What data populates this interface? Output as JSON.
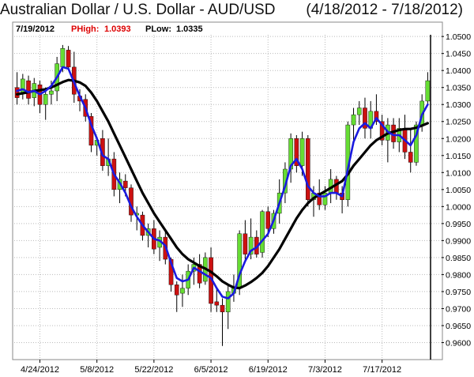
{
  "title": "Australian Dollar / U.S. Dollar -  AUD/USD",
  "date_range": "(4/18/2012 - 7/18/2012)",
  "info_bar": {
    "date": "7/19/2012",
    "high_label": "PHigh:",
    "high_value": "1.0393",
    "low_label": "PLow:",
    "low_value": "1.0335"
  },
  "colors": {
    "up": "#66dd33",
    "down": "#cc1111",
    "fast_ma": "#1a1adf",
    "slow_ma": "#000000",
    "grid": "#bbbbbb",
    "high_label": "#dd0000"
  },
  "chart_data": {
    "type": "candlestick",
    "ylim": [
      0.955,
      1.0505
    ],
    "y_ticks": [
      "1.0500",
      "1.0450",
      "1.0400",
      "1.0350",
      "1.0300",
      "1.0250",
      "1.0200",
      "1.0150",
      "1.0100",
      "1.0050",
      "1.0000",
      "0.9950",
      "0.9900",
      "0.9850",
      "0.9800",
      "0.9750",
      "0.9700",
      "0.9650",
      "0.9600"
    ],
    "x_tick_labels": [
      "4/24/2012",
      "5/8/2012",
      "5/22/2012",
      "6/5/2012",
      "6/19/2012",
      "7/3/2012",
      "7/17/2012"
    ],
    "x_tick_index": [
      4,
      14,
      24,
      34,
      44,
      54,
      64
    ],
    "grid": true,
    "candles": [
      {
        "o": 1.035,
        "h": 1.0395,
        "l": 1.03,
        "c": 1.032
      },
      {
        "o": 1.0335,
        "h": 1.039,
        "l": 1.0315,
        "c": 1.0375
      },
      {
        "o": 1.037,
        "h": 1.0385,
        "l": 1.03,
        "c": 1.0318
      },
      {
        "o": 1.032,
        "h": 1.0378,
        "l": 1.0295,
        "c": 1.0362
      },
      {
        "o": 1.0358,
        "h": 1.037,
        "l": 1.0275,
        "c": 1.03
      },
      {
        "o": 1.03,
        "h": 1.035,
        "l": 1.0255,
        "c": 1.033
      },
      {
        "o": 1.033,
        "h": 1.037,
        "l": 1.03,
        "c": 1.034
      },
      {
        "o": 1.034,
        "h": 1.044,
        "l": 1.031,
        "c": 1.042
      },
      {
        "o": 1.041,
        "h": 1.0475,
        "l": 1.0395,
        "c": 1.0465
      },
      {
        "o": 1.046,
        "h": 1.0472,
        "l": 1.04,
        "c": 1.041
      },
      {
        "o": 1.041,
        "h": 1.0455,
        "l": 1.0305,
        "c": 1.033
      },
      {
        "o": 1.0325,
        "h": 1.0345,
        "l": 1.028,
        "c": 1.031
      },
      {
        "o": 1.0315,
        "h": 1.033,
        "l": 1.025,
        "c": 1.0265
      },
      {
        "o": 1.0265,
        "h": 1.0275,
        "l": 1.016,
        "c": 1.018
      },
      {
        "o": 1.018,
        "h": 1.0205,
        "l": 1.015,
        "c": 1.0195
      },
      {
        "o": 1.02,
        "h": 1.0225,
        "l": 1.0105,
        "c": 1.012
      },
      {
        "o": 1.012,
        "h": 1.02,
        "l": 1.009,
        "c": 1.014
      },
      {
        "o": 1.014,
        "h": 1.016,
        "l": 1.003,
        "c": 1.005
      },
      {
        "o": 1.005,
        "h": 1.01,
        "l": 1.001,
        "c": 1.008
      },
      {
        "o": 1.0075,
        "h": 1.0095,
        "l": 1.003,
        "c": 1.0055
      },
      {
        "o": 1.0055,
        "h": 1.0065,
        "l": 0.9955,
        "c": 0.9975
      },
      {
        "o": 0.9975,
        "h": 1.0,
        "l": 0.993,
        "c": 0.998
      },
      {
        "o": 0.9975,
        "h": 0.9985,
        "l": 0.99,
        "c": 0.9915
      },
      {
        "o": 0.9915,
        "h": 0.995,
        "l": 0.988,
        "c": 0.9935
      },
      {
        "o": 0.9935,
        "h": 0.996,
        "l": 0.986,
        "c": 0.9875
      },
      {
        "o": 0.988,
        "h": 0.993,
        "l": 0.984,
        "c": 0.991
      },
      {
        "o": 0.991,
        "h": 0.9925,
        "l": 0.983,
        "c": 0.9845
      },
      {
        "o": 0.9845,
        "h": 0.985,
        "l": 0.975,
        "c": 0.977
      },
      {
        "o": 0.977,
        "h": 0.978,
        "l": 0.969,
        "c": 0.974
      },
      {
        "o": 0.9745,
        "h": 0.98,
        "l": 0.9705,
        "c": 0.976
      },
      {
        "o": 0.976,
        "h": 0.983,
        "l": 0.974,
        "c": 0.981
      },
      {
        "o": 0.981,
        "h": 0.985,
        "l": 0.977,
        "c": 0.983
      },
      {
        "o": 0.983,
        "h": 0.986,
        "l": 0.976,
        "c": 0.9775
      },
      {
        "o": 0.978,
        "h": 0.9865,
        "l": 0.977,
        "c": 0.985
      },
      {
        "o": 0.985,
        "h": 0.988,
        "l": 0.969,
        "c": 0.9715
      },
      {
        "o": 0.972,
        "h": 0.976,
        "l": 0.969,
        "c": 0.971
      },
      {
        "o": 0.971,
        "h": 0.973,
        "l": 0.959,
        "c": 0.969
      },
      {
        "o": 0.969,
        "h": 0.977,
        "l": 0.964,
        "c": 0.975
      },
      {
        "o": 0.9745,
        "h": 0.98,
        "l": 0.972,
        "c": 0.976
      },
      {
        "o": 0.976,
        "h": 0.993,
        "l": 0.974,
        "c": 0.992
      },
      {
        "o": 0.992,
        "h": 0.996,
        "l": 0.984,
        "c": 0.986
      },
      {
        "o": 0.986,
        "h": 0.9965,
        "l": 0.9845,
        "c": 0.991
      },
      {
        "o": 0.991,
        "h": 0.993,
        "l": 0.985,
        "c": 0.986
      },
      {
        "o": 0.9865,
        "h": 0.999,
        "l": 0.985,
        "c": 0.9985
      },
      {
        "o": 0.9985,
        "h": 1.0,
        "l": 0.991,
        "c": 0.9935
      },
      {
        "o": 0.9935,
        "h": 0.999,
        "l": 0.992,
        "c": 0.998
      },
      {
        "o": 0.998,
        "h": 1.008,
        "l": 0.995,
        "c": 1.004
      },
      {
        "o": 1.004,
        "h": 1.013,
        "l": 1.001,
        "c": 1.011
      },
      {
        "o": 1.011,
        "h": 1.0215,
        "l": 1.007,
        "c": 1.02
      },
      {
        "o": 1.02,
        "h": 1.021,
        "l": 1.01,
        "c": 1.012
      },
      {
        "o": 1.012,
        "h": 1.022,
        "l": 1.009,
        "c": 1.02
      },
      {
        "o": 1.02,
        "h": 1.021,
        "l": 1.0,
        "c": 1.002
      },
      {
        "o": 1.002,
        "h": 1.006,
        "l": 0.997,
        "c": 1.004
      },
      {
        "o": 1.004,
        "h": 1.008,
        "l": 0.999,
        "c": 1.0005
      },
      {
        "o": 1.0005,
        "h": 1.006,
        "l": 0.999,
        "c": 1.004
      },
      {
        "o": 1.004,
        "h": 1.011,
        "l": 1.001,
        "c": 1.008
      },
      {
        "o": 1.008,
        "h": 1.009,
        "l": 1.002,
        "c": 1.004
      },
      {
        "o": 1.004,
        "h": 1.006,
        "l": 0.998,
        "c": 1.002
      },
      {
        "o": 1.002,
        "h": 1.025,
        "l": 1.0,
        "c": 1.024
      },
      {
        "o": 1.024,
        "h": 1.029,
        "l": 1.018,
        "c": 1.027
      },
      {
        "o": 1.027,
        "h": 1.031,
        "l": 1.024,
        "c": 1.029
      },
      {
        "o": 1.029,
        "h": 1.032,
        "l": 1.02,
        "c": 1.023
      },
      {
        "o": 1.023,
        "h": 1.031,
        "l": 1.02,
        "c": 1.028
      },
      {
        "o": 1.028,
        "h": 1.033,
        "l": 1.024,
        "c": 1.025
      },
      {
        "o": 1.025,
        "h": 1.027,
        "l": 1.018,
        "c": 1.0195
      },
      {
        "o": 1.0195,
        "h": 1.026,
        "l": 1.013,
        "c": 1.024
      },
      {
        "o": 1.024,
        "h": 1.026,
        "l": 1.017,
        "c": 1.019
      },
      {
        "o": 1.019,
        "h": 1.026,
        "l": 1.016,
        "c": 1.023
      },
      {
        "o": 1.023,
        "h": 1.027,
        "l": 1.014,
        "c": 1.016
      },
      {
        "o": 1.016,
        "h": 1.023,
        "l": 1.01,
        "c": 1.013
      },
      {
        "o": 1.013,
        "h": 1.025,
        "l": 1.012,
        "c": 1.024
      },
      {
        "o": 1.024,
        "h": 1.033,
        "l": 1.022,
        "c": 1.031
      },
      {
        "o": 1.031,
        "h": 1.0395,
        "l": 1.03,
        "c": 1.037
      }
    ],
    "fast_ma": [
      1.034,
      1.0345,
      1.0336,
      1.034,
      1.033,
      1.034,
      1.0355,
      1.038,
      1.041,
      1.0405,
      1.0365,
      1.0325,
      1.029,
      1.024,
      1.02,
      1.015,
      1.014,
      1.0095,
      1.007,
      1.004,
      1.0,
      0.997,
      0.9945,
      0.9925,
      0.9905,
      0.99,
      0.9885,
      0.9835,
      0.979,
      0.978,
      0.9785,
      0.982,
      0.981,
      0.98,
      0.979,
      0.976,
      0.9735,
      0.973,
      0.9745,
      0.98,
      0.984,
      0.987,
      0.988,
      0.99,
      0.992,
      0.996,
      1.001,
      1.006,
      1.012,
      1.014,
      1.011,
      1.006,
      1.004,
      1.003,
      1.003,
      1.004,
      1.004,
      1.003,
      1.011,
      1.019,
      1.023,
      1.0245,
      1.023,
      1.026,
      1.024,
      1.022,
      1.021,
      1.021,
      1.0195,
      1.018,
      1.021,
      1.027,
      1.03
    ],
    "slow_ma": [
      1.033,
      1.0333,
      1.0336,
      1.034,
      1.0342,
      1.0345,
      1.035,
      1.0358,
      1.0366,
      1.0372,
      1.037,
      1.0365,
      1.0355,
      1.0335,
      1.031,
      1.028,
      1.025,
      1.0215,
      1.018,
      1.0145,
      1.011,
      1.0075,
      1.004,
      1.001,
      0.998,
      0.9955,
      0.993,
      0.9905,
      0.988,
      0.986,
      0.9845,
      0.9835,
      0.9825,
      0.9818,
      0.9808,
      0.9795,
      0.978,
      0.977,
      0.9762,
      0.976,
      0.9768,
      0.9778,
      0.979,
      0.9805,
      0.9825,
      0.985,
      0.9875,
      0.9905,
      0.9935,
      0.9965,
      0.999,
      1.001,
      1.0025,
      1.0035,
      1.0045,
      1.0055,
      1.0065,
      1.0075,
      1.0095,
      1.012,
      1.014,
      1.016,
      1.018,
      1.0195,
      1.0205,
      1.0215,
      1.022,
      1.0225,
      1.0228,
      1.0228,
      1.0232,
      1.0238,
      1.0245
    ]
  }
}
